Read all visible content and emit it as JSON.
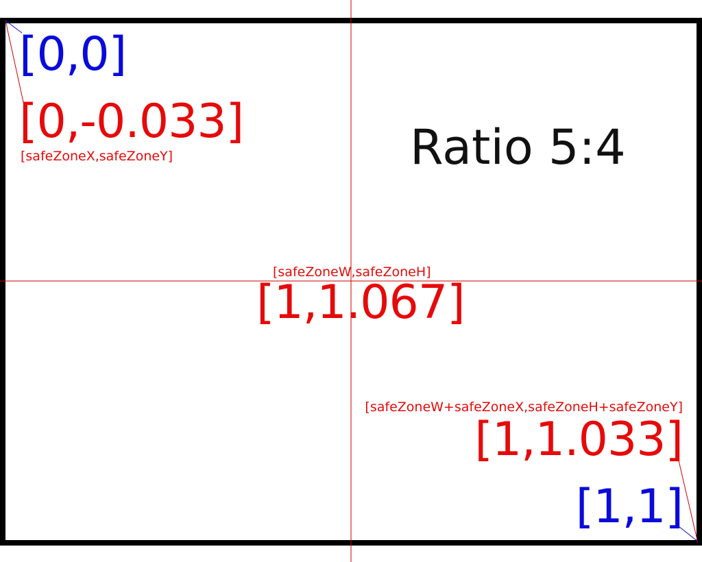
{
  "colors": {
    "blue": "#0a0adc",
    "red": "#e60a0a",
    "black": "#111111",
    "guide": "#cc0000"
  },
  "title": "Ratio 5:4",
  "top_left": {
    "screen_coord": "[0,0]",
    "safe_coord": "[0,-0.033]",
    "safe_caption": "[safeZoneX,safeZoneY]"
  },
  "center": {
    "caption": "[safeZoneW,safeZoneH]",
    "coord": "[1,1.067]"
  },
  "bottom_right": {
    "safe_caption": "[safeZoneW+safeZoneX,safeZoneH+safeZoneY]",
    "safe_coord": "[1,1.033]",
    "screen_coord": "[1,1]"
  }
}
